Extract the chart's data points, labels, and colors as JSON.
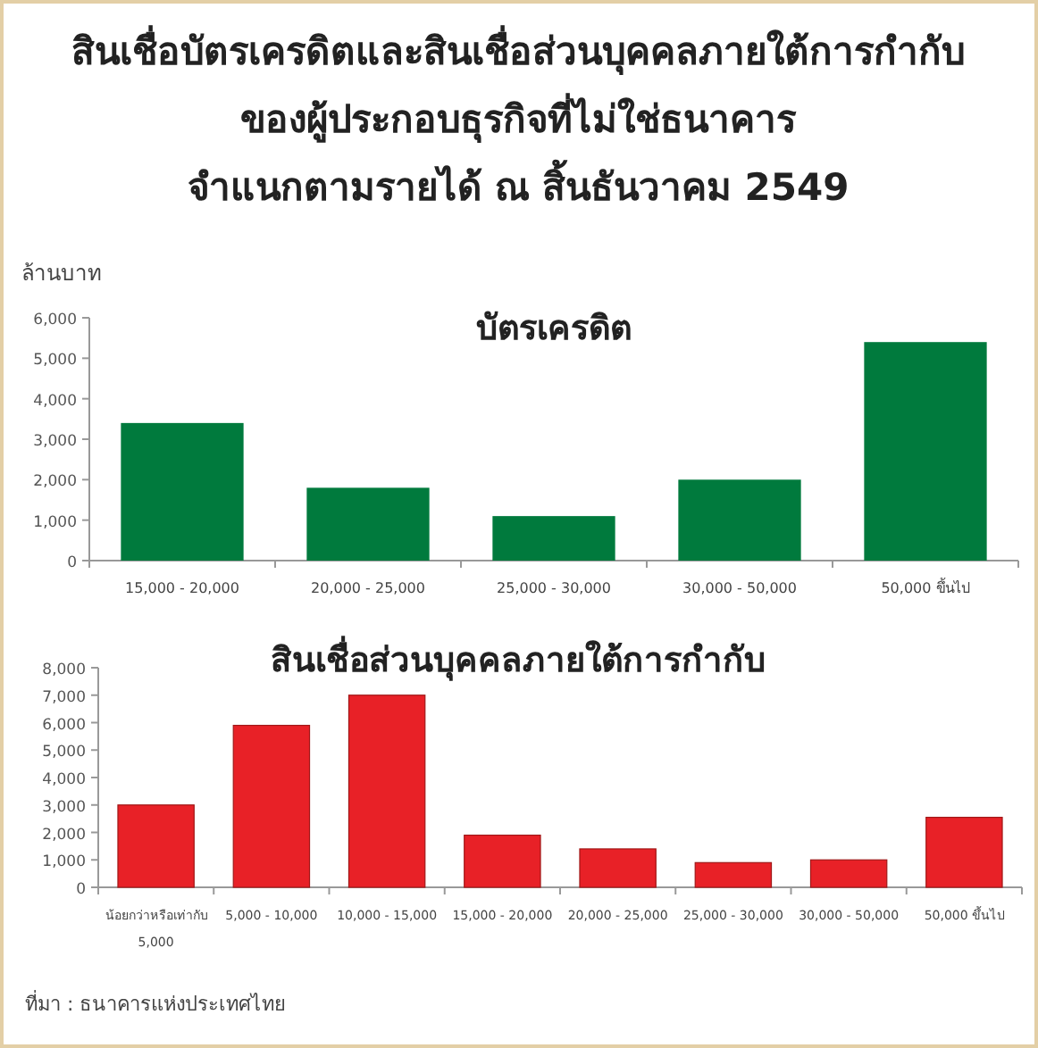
{
  "chart_data": [
    {
      "type": "bar",
      "title": "สินเชื่อบัตรเครดิตและสินเชื่อส่วนบุคคลภายใต้การกำกับ\nของผู้ประกอบธุรกิจที่ไม่ใช่ธนาคาร\nจำแนกตามรายได้ ณ สิ้นธันวาคม 2549",
      "subtitle": "บัตรเครดิต",
      "ylabel": "ล้านบาท",
      "categories": [
        "15,000 - 20,000",
        "20,000 - 25,000",
        "25,000 - 30,000",
        "30,000 - 50,000",
        "50,000 ขึ้นไป"
      ],
      "series": [
        {
          "color": "#007a3d",
          "values": [
            3400,
            1800,
            1100,
            2000,
            5400
          ]
        }
      ],
      "ylim": [
        0,
        6000
      ],
      "yticks": [
        {
          "value": 0,
          "label": "0"
        },
        {
          "value": 1000,
          "label": "1,000"
        },
        {
          "value": 2000,
          "label": "2,000"
        },
        {
          "value": 3000,
          "label": "3,000"
        },
        {
          "value": 4000,
          "label": "4,000"
        },
        {
          "value": 5000,
          "label": "5,000"
        },
        {
          "value": 6000,
          "label": "6,000"
        }
      ]
    },
    {
      "type": "bar",
      "title": "สินเชื่อส่วนบุคคลภายใต้การกำกับ",
      "categories": [
        "น้อยกว่าหรือเท่ากับ\n5,000",
        "5,000 - 10,000",
        "10,000 - 15,000",
        "15,000 - 20,000",
        "20,000 - 25,000",
        "25,000 - 30,000",
        "30,000 - 50,000",
        "50,000 ขึ้นไป"
      ],
      "series": [
        {
          "color": "#e82127",
          "values": [
            3000,
            5900,
            7000,
            1900,
            1400,
            900,
            1000,
            2550
          ]
        }
      ],
      "ylim": [
        0,
        8000
      ],
      "yticks": [
        {
          "value": 0,
          "label": "0"
        },
        {
          "value": 1000,
          "label": "1,000"
        },
        {
          "value": 2000,
          "label": "2,000"
        },
        {
          "value": 3000,
          "label": "3,000"
        },
        {
          "value": 4000,
          "label": "4,000"
        },
        {
          "value": 5000,
          "label": "5,000"
        },
        {
          "value": 6000,
          "label": "6,000"
        },
        {
          "value": 7000,
          "label": "7,000"
        },
        {
          "value": 8000,
          "label": "8,000"
        }
      ],
      "annotations": [
        "ที่มา : ธนาคารแห่งประเทศไทย"
      ]
    }
  ]
}
